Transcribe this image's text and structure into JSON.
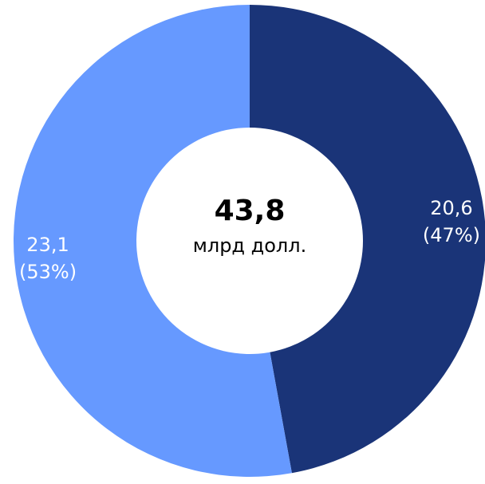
{
  "chart_data": {
    "type": "donut",
    "categories": [
      null,
      null
    ],
    "values": [
      20.6,
      23.1
    ],
    "value_labels": [
      "20,6",
      "23,1"
    ],
    "percent_labels": [
      "(47%)",
      "(53%)"
    ],
    "colors": [
      "#1a3478",
      "#6699ff"
    ],
    "center_label": "43,8",
    "center_subtitle": "млрд долл."
  }
}
